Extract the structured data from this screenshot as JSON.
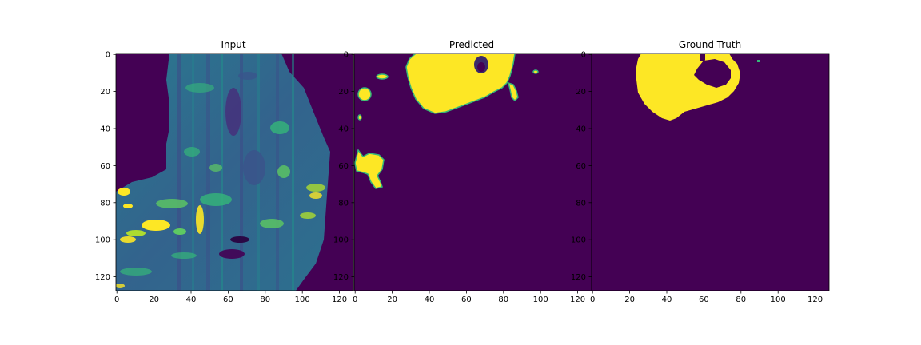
{
  "figure": {
    "colors": {
      "background": "#440154",
      "mask": "#fde725",
      "edge": "#35b779",
      "mid": "#31688e",
      "mid2": "#26828e",
      "dark": "#472d7b"
    },
    "panels": [
      {
        "title": "Input",
        "content": "viridis-heatmap",
        "xticks": [
          "0",
          "20",
          "40",
          "60",
          "80",
          "100",
          "120"
        ],
        "yticks": [
          "0",
          "20",
          "40",
          "60",
          "80",
          "100",
          "120"
        ]
      },
      {
        "title": "Predicted",
        "content": "segmentation-mask",
        "xticks": [
          "0",
          "20",
          "40",
          "60",
          "80",
          "100",
          "120"
        ],
        "yticks": [
          "0",
          "20",
          "40",
          "60",
          "80",
          "100",
          "120"
        ]
      },
      {
        "title": "Ground Truth",
        "content": "segmentation-mask",
        "xticks": [
          "0",
          "20",
          "40",
          "60",
          "80",
          "100",
          "120"
        ],
        "yticks": [
          "0",
          "20",
          "40",
          "60",
          "80",
          "100",
          "120"
        ]
      }
    ]
  }
}
